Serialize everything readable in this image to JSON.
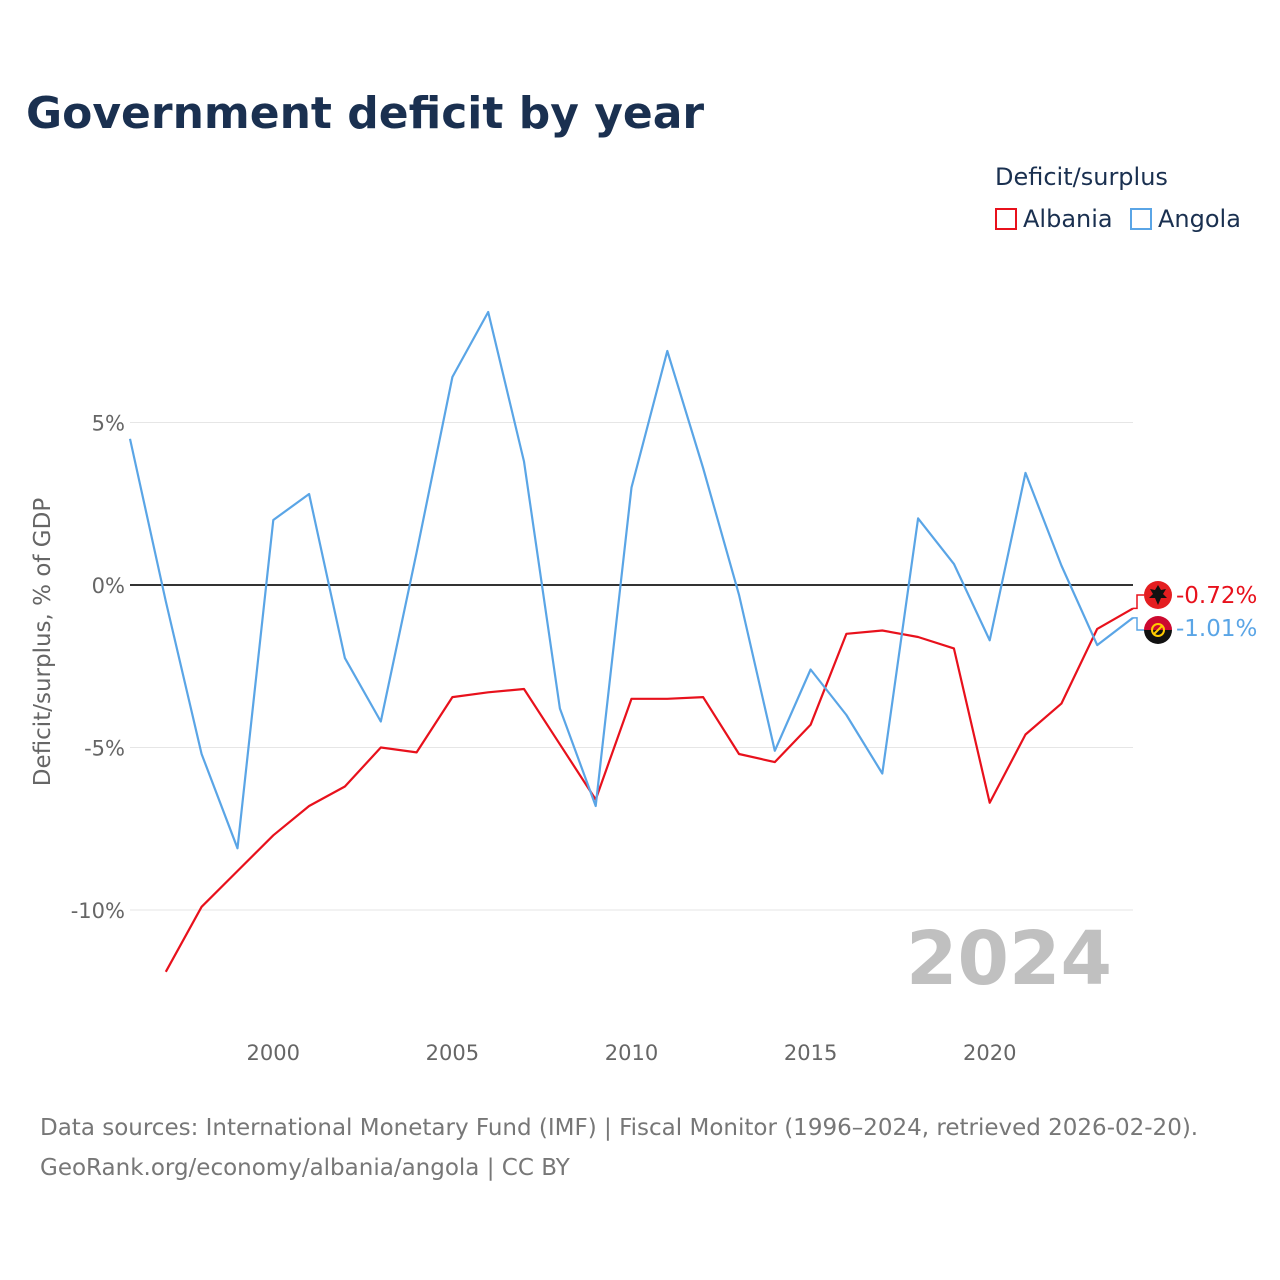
{
  "chart_data": {
    "type": "line",
    "title": "Government deficit by year",
    "xlabel": "",
    "ylabel": "Deficit/surplus, % of GDP",
    "xlim": [
      1996,
      2024
    ],
    "ylim": [
      -12.5,
      9
    ],
    "x_ticks": [
      2000,
      2005,
      2010,
      2015,
      2020
    ],
    "y_ticks": [
      5,
      0,
      -5,
      -10
    ],
    "y_tick_labels": [
      "5%",
      "0%",
      "-5%",
      "-10%"
    ],
    "grid": true,
    "legend_title": "Deficit/surplus",
    "legend_position": "top-right",
    "year_watermark": "2024",
    "series": [
      {
        "name": "Albania",
        "color": "#e8111c",
        "x": [
          1997,
          1998,
          1999,
          2000,
          2001,
          2002,
          2003,
          2004,
          2005,
          2006,
          2007,
          2008,
          2009,
          2010,
          2011,
          2012,
          2013,
          2014,
          2015,
          2016,
          2017,
          2018,
          2019,
          2020,
          2021,
          2022,
          2023,
          2024
        ],
        "values": [
          -11.9,
          -9.9,
          -8.8,
          -7.7,
          -6.8,
          -6.2,
          -5.0,
          -5.15,
          -3.45,
          -3.3,
          -3.2,
          -4.9,
          -6.6,
          -3.5,
          -3.5,
          -3.45,
          -5.2,
          -5.45,
          -4.3,
          -1.5,
          -1.4,
          -1.6,
          -1.95,
          -6.7,
          -4.6,
          -3.65,
          -1.35,
          -0.72
        ],
        "end_label": "-0.72%"
      },
      {
        "name": "Angola",
        "color": "#5aa5e6",
        "x": [
          1996,
          1997,
          1998,
          1999,
          2000,
          2001,
          2002,
          2003,
          2004,
          2005,
          2006,
          2007,
          2008,
          2009,
          2010,
          2011,
          2012,
          2013,
          2014,
          2015,
          2016,
          2017,
          2018,
          2019,
          2020,
          2021,
          2022,
          2023,
          2024
        ],
        "values": [
          4.5,
          -0.5,
          -5.2,
          -8.1,
          2.0,
          2.8,
          -2.25,
          -4.2,
          1.0,
          6.4,
          8.4,
          3.8,
          -3.8,
          -6.8,
          3.0,
          7.2,
          3.6,
          -0.3,
          -5.1,
          -2.6,
          -4.0,
          -5.8,
          2.05,
          0.65,
          -1.7,
          3.45,
          0.6,
          -1.85,
          -1.01
        ],
        "end_label": "-1.01%"
      }
    ]
  },
  "source": {
    "line1": "Data sources: International Monetary Fund (IMF) | Fiscal Monitor (1996–2024, retrieved 2026-02-20).",
    "line2": "GeoRank.org/economy/albania/angola | CC BY"
  }
}
